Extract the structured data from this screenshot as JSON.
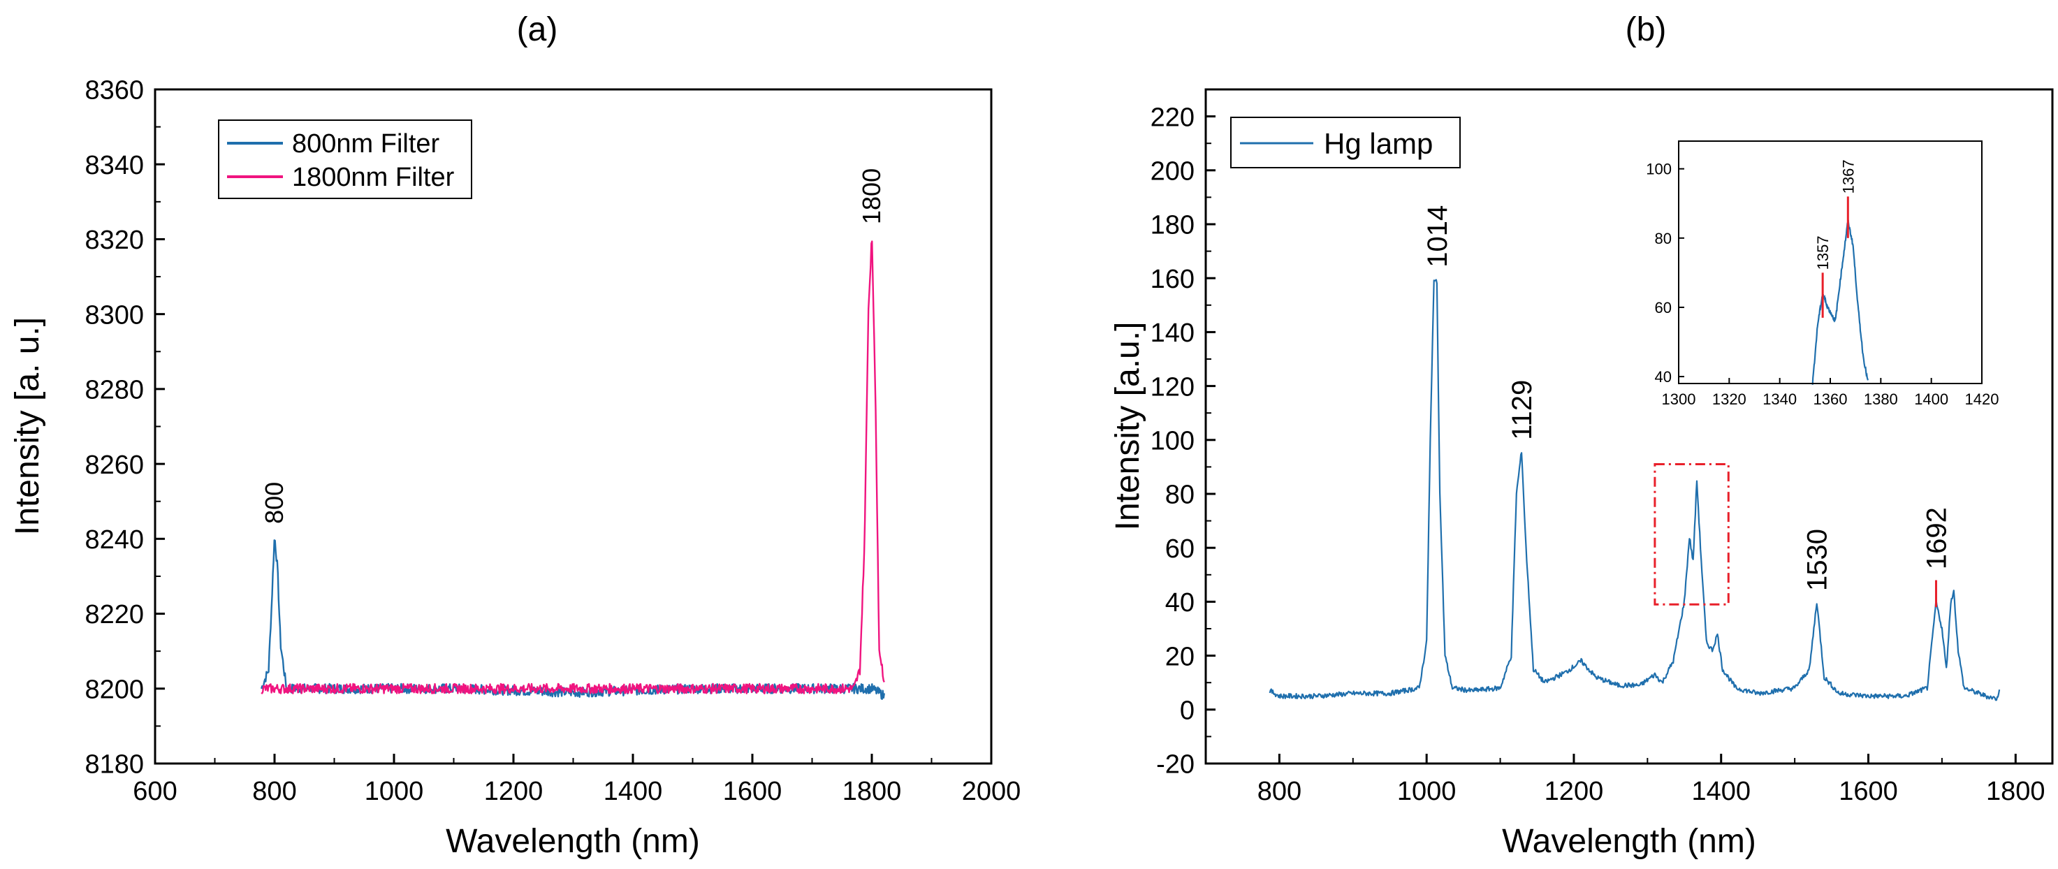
{
  "colors": {
    "blue": "#1f6fad",
    "pink": "#f0147f",
    "red": "#e8202a",
    "axis": "#000000"
  },
  "chart_data": [
    {
      "type": "line",
      "panel_label": "(a)",
      "xlabel": "Wavelength (nm)",
      "ylabel": "Intensity [a. u.]",
      "xlim": [
        600,
        2000
      ],
      "ylim": [
        8180,
        8360
      ],
      "x_ticks": [
        "600",
        "800",
        "1000",
        "1200",
        "1400",
        "1600",
        "1800",
        "2000"
      ],
      "y_ticks": [
        "8180",
        "8200",
        "8220",
        "8240",
        "8260",
        "8280",
        "8300",
        "8320",
        "8340",
        "8360"
      ],
      "legend_position": "top-left",
      "series": [
        {
          "name": "800nm Filter",
          "color": "#1f6fad",
          "x": [
            778,
            790,
            795,
            800,
            805,
            810,
            820,
            900,
            1100,
            1300,
            1500,
            1700,
            1790,
            1800,
            1822
          ],
          "y": [
            8200,
            8205,
            8222,
            8241,
            8232,
            8212,
            8200,
            8200,
            8200,
            8199,
            8200,
            8200,
            8200,
            8200,
            8198
          ]
        },
        {
          "name": "1800nm Filter",
          "color": "#f0147f",
          "x": [
            778,
            850,
            1000,
            1200,
            1400,
            1600,
            1770,
            1780,
            1788,
            1794,
            1800,
            1806,
            1812,
            1822
          ],
          "y": [
            8200,
            8200,
            8200,
            8200,
            8200,
            8200,
            8200,
            8205,
            8240,
            8300,
            8321,
            8280,
            8212,
            8200
          ]
        }
      ],
      "annotations": [
        {
          "text": "800",
          "x": 800,
          "y": 8244
        },
        {
          "text": "1800",
          "x": 1800,
          "y": 8324
        }
      ]
    },
    {
      "type": "line",
      "panel_label": "(b)",
      "xlabel": "Wavelength (nm)",
      "ylabel": "Intensity [a.u.]",
      "xlim": [
        700,
        1850
      ],
      "ylim": [
        -20,
        230
      ],
      "x_ticks": [
        "800",
        "1000",
        "1200",
        "1400",
        "1600",
        "1800"
      ],
      "y_ticks": [
        "-20",
        "0",
        "20",
        "40",
        "60",
        "80",
        "100",
        "120",
        "140",
        "160",
        "180",
        "200",
        "220"
      ],
      "legend_position": "top-left",
      "series": [
        {
          "name": "Hg lamp",
          "color": "#1f6fad",
          "x": [
            787,
            800,
            850,
            900,
            950,
            990,
            1000,
            1005,
            1010,
            1014,
            1018,
            1025,
            1035,
            1060,
            1100,
            1115,
            1122,
            1129,
            1135,
            1145,
            1160,
            1190,
            1210,
            1230,
            1260,
            1290,
            1310,
            1320,
            1335,
            1350,
            1357,
            1362,
            1367,
            1372,
            1380,
            1388,
            1395,
            1402,
            1420,
            1450,
            1500,
            1520,
            1530,
            1540,
            1560,
            1600,
            1650,
            1680,
            1692,
            1700,
            1706,
            1712,
            1716,
            1722,
            1730,
            1760,
            1775,
            1778
          ],
          "y": [
            7,
            5,
            5,
            6,
            6,
            8,
            25,
            100,
            160,
            158,
            80,
            20,
            8,
            7,
            8,
            20,
            80,
            96,
            60,
            15,
            10,
            14,
            18,
            12,
            9,
            9,
            13,
            10,
            18,
            40,
            64,
            55,
            85,
            60,
            25,
            22,
            28,
            15,
            8,
            6,
            8,
            15,
            40,
            12,
            6,
            5,
            5,
            8,
            40,
            30,
            15,
            40,
            44,
            22,
            8,
            5,
            4,
            8
          ]
        }
      ],
      "annotations": [
        {
          "text": "1014",
          "x": 1014,
          "y": 164
        },
        {
          "text": "1129",
          "x": 1129,
          "y": 100
        },
        {
          "text": "1530",
          "x": 1530,
          "y": 44
        },
        {
          "text": "1692",
          "x": 1692,
          "y": 52
        }
      ],
      "highlight_box": {
        "x0": 1310,
        "x1": 1410,
        "y0": 39,
        "y1": 91
      },
      "inset": {
        "xlim": [
          1300,
          1420
        ],
        "ylim": [
          38,
          108
        ],
        "x_ticks": [
          "1300",
          "1320",
          "1340",
          "1360",
          "1380",
          "1400",
          "1420"
        ],
        "y_ticks": [
          "40",
          "60",
          "80",
          "100"
        ],
        "x": [
          1353,
          1355,
          1357,
          1359,
          1362,
          1364,
          1367,
          1369,
          1371,
          1373,
          1375
        ],
        "y": [
          38,
          55,
          64,
          60,
          56,
          68,
          85,
          78,
          60,
          46,
          38
        ],
        "markers": [
          {
            "x": 1357,
            "y0": 57,
            "y1": 70,
            "label": "1357"
          },
          {
            "x": 1367,
            "y0": 80,
            "y1": 92,
            "label": "1367"
          }
        ]
      }
    }
  ]
}
